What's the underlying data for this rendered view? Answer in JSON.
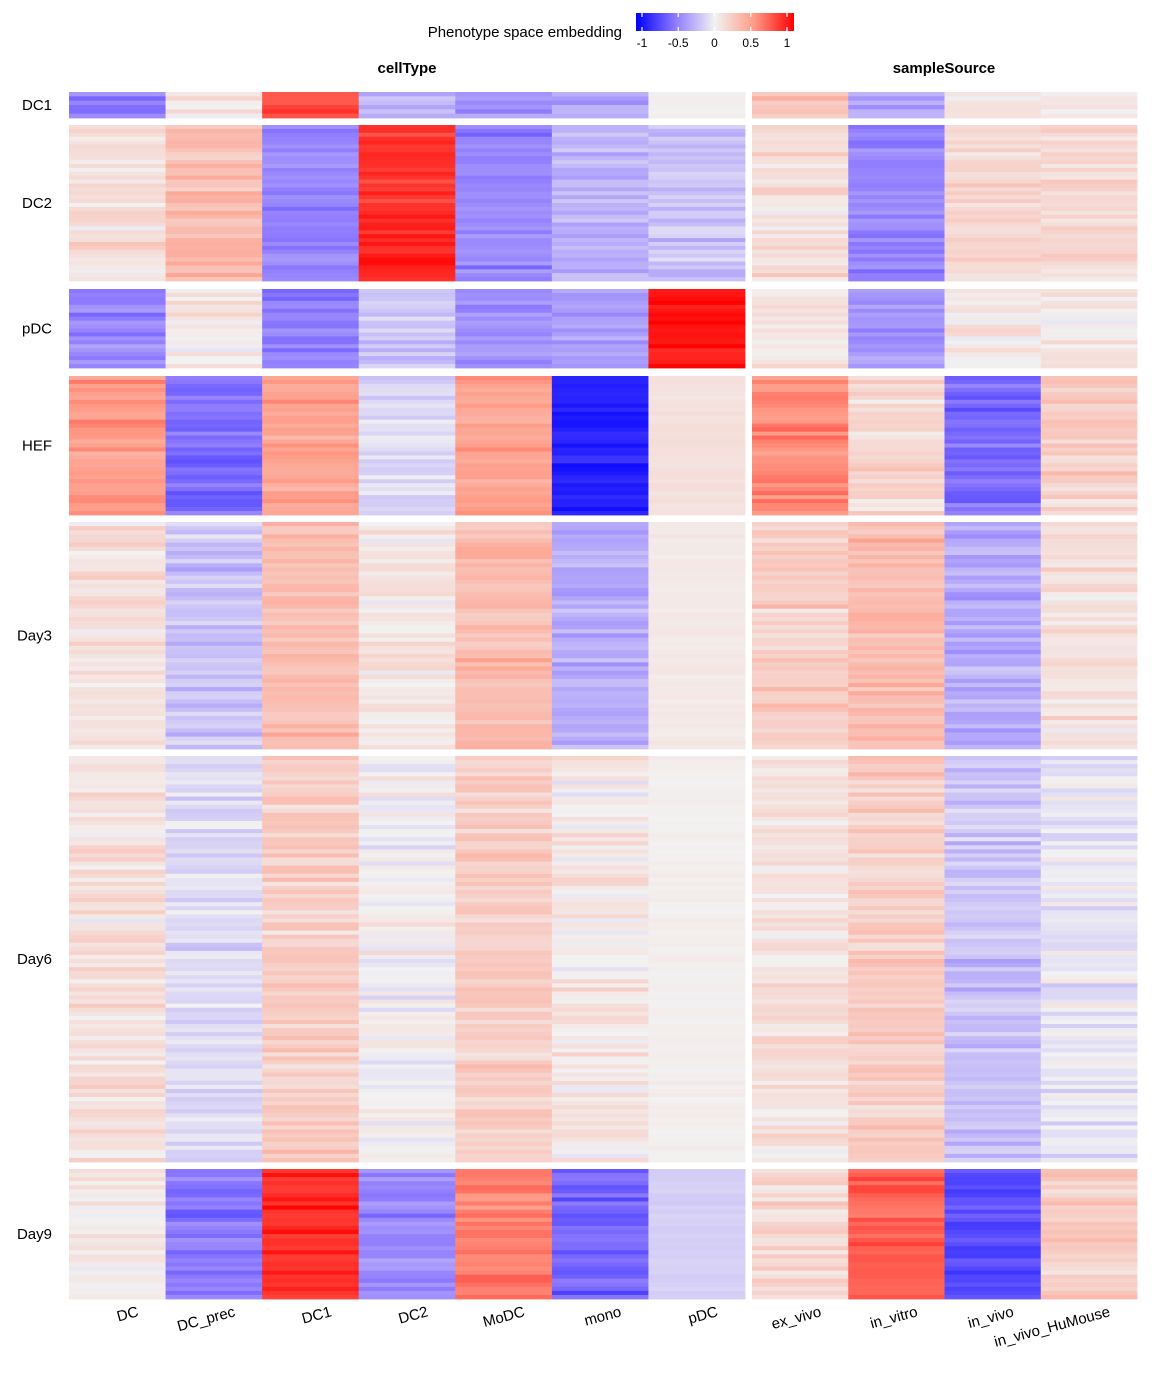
{
  "chart_data": {
    "type": "heatmap",
    "legend": {
      "title": "Phenotype space embedding",
      "ticks": [
        "-1",
        "-0.5",
        "0",
        "0.5",
        "1"
      ],
      "tick_values": [
        -1,
        -0.5,
        0,
        0.5,
        1
      ],
      "colors": {
        "low": "#0000ff",
        "mid": "#f2f2f2",
        "high": "#ff0000"
      },
      "placement": "top-center"
    },
    "column_groups": [
      {
        "title": "cellType",
        "columns": [
          "DC",
          "DC_prec",
          "DC1",
          "DC2",
          "MoDC",
          "mono",
          "pDC"
        ]
      },
      {
        "title": "sampleSource",
        "columns": [
          "ex_vivo",
          "in_vitro",
          "in_vivo",
          "in_vivo_HuMouse"
        ]
      }
    ],
    "row_groups": [
      {
        "label": "DC1",
        "rows": 6,
        "means": [
          -0.45,
          0.05,
          0.75,
          -0.25,
          -0.4,
          -0.35,
          0.0,
          0.25,
          -0.3,
          0.05,
          0.05
        ]
      },
      {
        "label": "DC2",
        "rows": 40,
        "means": [
          0.1,
          0.3,
          -0.45,
          0.85,
          -0.45,
          -0.25,
          -0.2,
          0.1,
          -0.45,
          0.15,
          0.15
        ]
      },
      {
        "label": "pDC",
        "rows": 20,
        "means": [
          -0.45,
          0.05,
          -0.5,
          -0.2,
          -0.4,
          -0.35,
          0.95,
          0.1,
          -0.4,
          0.05,
          0.05
        ]
      },
      {
        "label": "HEF",
        "rows": 35,
        "means": [
          0.5,
          -0.55,
          0.45,
          -0.1,
          0.45,
          -0.85,
          0.1,
          0.55,
          0.15,
          -0.55,
          0.2
        ]
      },
      {
        "label": "Day3",
        "rows": 55,
        "means": [
          0.1,
          -0.2,
          0.3,
          0.05,
          0.3,
          -0.3,
          0.05,
          0.2,
          0.3,
          -0.3,
          0.1
        ]
      },
      {
        "label": "Day6",
        "rows": 100,
        "means": [
          0.1,
          -0.1,
          0.2,
          0.0,
          0.2,
          0.05,
          0.02,
          0.1,
          0.2,
          -0.2,
          -0.05
        ]
      },
      {
        "label": "Day9",
        "rows": 32,
        "means": [
          0.05,
          -0.5,
          0.85,
          -0.45,
          0.6,
          -0.6,
          -0.15,
          0.15,
          0.7,
          -0.7,
          0.2
        ]
      }
    ],
    "xlabel": "",
    "ylabel": ""
  }
}
